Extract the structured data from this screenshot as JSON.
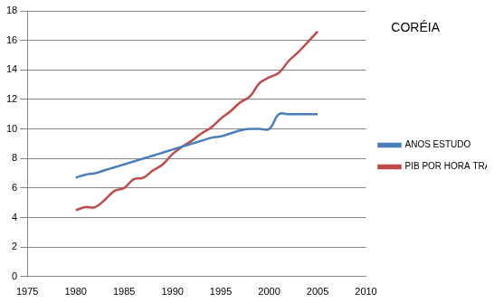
{
  "chart_data": {
    "type": "line",
    "title": "CORÉIA",
    "x": [
      1980,
      1981,
      1982,
      1983,
      1984,
      1985,
      1986,
      1987,
      1988,
      1989,
      1990,
      1991,
      1992,
      1993,
      1994,
      1995,
      1996,
      1997,
      1998,
      1999,
      2000,
      2001,
      2002,
      2003,
      2004,
      2005
    ],
    "series": [
      {
        "name": "ANOS ESTUDO",
        "color": "#4a7ebb",
        "values": [
          6.7,
          6.9,
          7.0,
          7.2,
          7.4,
          7.6,
          7.8,
          8.0,
          8.2,
          8.4,
          8.6,
          8.8,
          9.0,
          9.2,
          9.4,
          9.5,
          9.7,
          9.9,
          10.0,
          10.0,
          10.0,
          11.0,
          11.0,
          11.0,
          11.0,
          11.0
        ]
      },
      {
        "name": "PIB POR HORA TRABALHADA",
        "color": "#be4b48",
        "values": [
          4.5,
          4.7,
          4.7,
          5.2,
          5.8,
          6.0,
          6.6,
          6.7,
          7.2,
          7.6,
          8.3,
          8.8,
          9.2,
          9.7,
          10.1,
          10.7,
          11.2,
          11.8,
          12.2,
          13.1,
          13.5,
          13.8,
          14.6,
          15.2,
          15.9,
          16.6
        ]
      }
    ],
    "xlim": [
      1975,
      2010
    ],
    "xticks": [
      1975,
      1980,
      1985,
      1990,
      1995,
      2000,
      2005,
      2010
    ],
    "ylim": [
      0,
      18
    ],
    "yticks": [
      0,
      2,
      4,
      6,
      8,
      10,
      12,
      14,
      16,
      18
    ],
    "grid": "y",
    "legend": "right",
    "line_style": "smooth",
    "marker": "none"
  }
}
